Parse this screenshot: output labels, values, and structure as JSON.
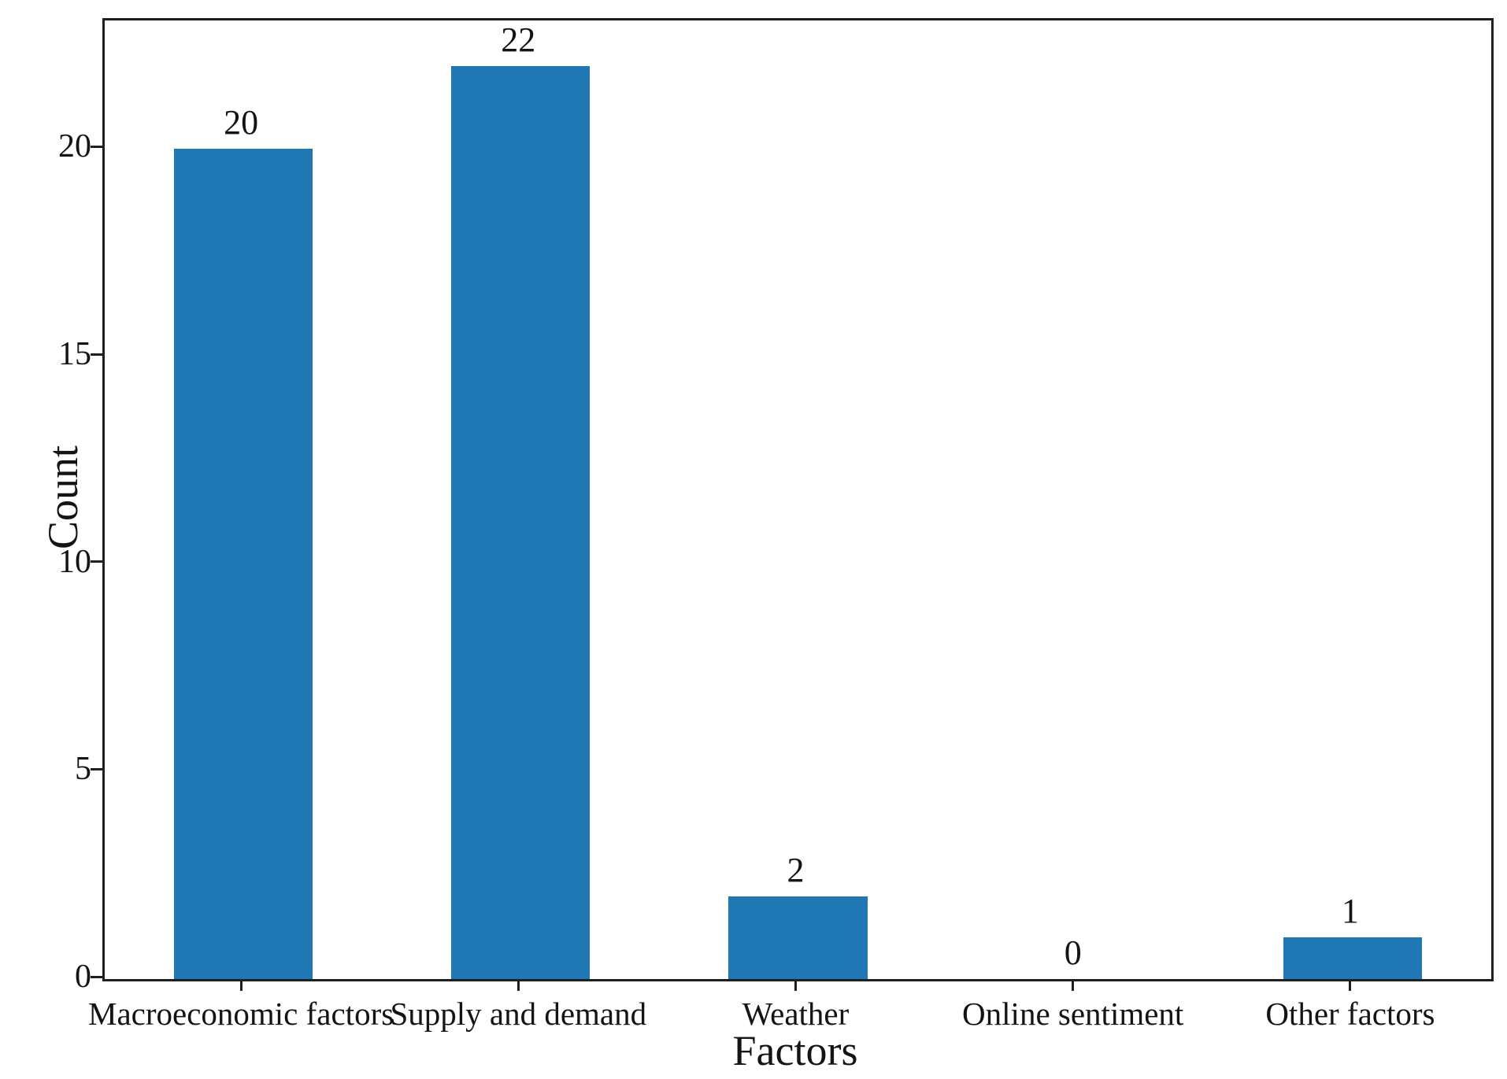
{
  "chart_data": {
    "type": "bar",
    "title": "",
    "xlabel": "Factors",
    "ylabel": "Count",
    "categories": [
      "Macroeconomic factors",
      "Supply and demand",
      "Weather",
      "Online sentiment",
      "Other factors"
    ],
    "values": [
      20,
      22,
      2,
      0,
      1
    ],
    "value_labels": [
      "20",
      "22",
      "2",
      "0",
      "1"
    ],
    "yticks": [
      0,
      5,
      10,
      15,
      20
    ],
    "ytick_labels": [
      "0",
      "5",
      "10",
      "15",
      "20"
    ],
    "ylim": [
      0,
      23.1
    ],
    "bar_color": "#1f77b4",
    "bar_width_fraction": 0.5,
    "grid": false,
    "legend": "none",
    "frame": "full-box"
  }
}
